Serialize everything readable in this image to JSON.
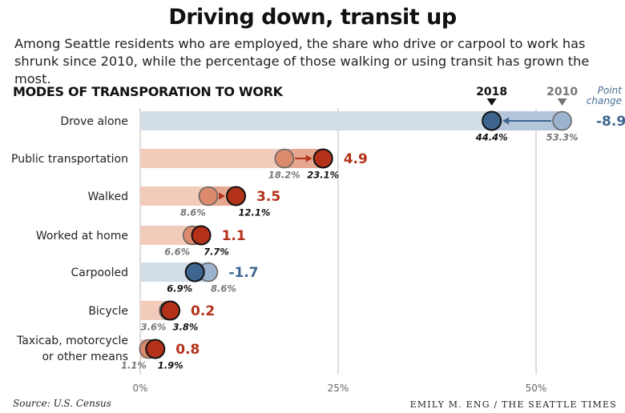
{
  "header": {
    "title": "Driving down, transit up",
    "subtitle": "Among Seattle residents who are employed, the share who drive or carpool to work has shrunk since 2010, while the percentage of those walking or using transit has grown the most.",
    "section_label": "MODES OF TRANSPORATION TO WORK"
  },
  "footer": {
    "source": "Source: U.S. Census",
    "credit": "EMILY M. ENG / THE SEATTLE TIMES"
  },
  "chart_data": {
    "type": "dumbbell",
    "title": "MODES OF TRANSPORATION TO WORK",
    "xlim": [
      0,
      60
    ],
    "ticks": [
      {
        "value": 0,
        "label": "0%"
      },
      {
        "value": 25,
        "label": "25%"
      },
      {
        "value": 50,
        "label": "50%"
      }
    ],
    "series_names": [
      "2010",
      "2018"
    ],
    "change_header": [
      "Point",
      "change"
    ],
    "colors": {
      "up_dark": "#b5321a",
      "up_light": "#db8a6c",
      "up_bar": "#f2cbbb",
      "down_dark": "#3d6590",
      "down_light": "#9cb3cd",
      "down_bar": "#d3dde8",
      "grid": "#b8b8b8",
      "label_2010": "#777777",
      "label_2018": "#111111"
    },
    "rows": [
      {
        "category": [
          "Drove alone"
        ],
        "v2010": 53.3,
        "v2018": 44.4,
        "label2010": "53.3%",
        "label2018": "44.4%",
        "change": "-8.9",
        "direction": "down"
      },
      {
        "category": [
          "Public transportation"
        ],
        "v2010": 18.2,
        "v2018": 23.1,
        "label2010": "18.2%",
        "label2018": "23.1%",
        "change": "4.9",
        "direction": "up"
      },
      {
        "category": [
          "Walked"
        ],
        "v2010": 8.6,
        "v2018": 12.1,
        "label2010": "8.6%",
        "label2018": "12.1%",
        "change": "3.5",
        "direction": "up"
      },
      {
        "category": [
          "Worked at home"
        ],
        "v2010": 6.6,
        "v2018": 7.7,
        "label2010": "6.6%",
        "label2018": "7.7%",
        "change": "1.1",
        "direction": "up"
      },
      {
        "category": [
          "Carpooled"
        ],
        "v2010": 8.6,
        "v2018": 6.9,
        "label2010": "8.6%",
        "label2018": "6.9%",
        "change": "-1.7",
        "direction": "down"
      },
      {
        "category": [
          "Bicycle"
        ],
        "v2010": 3.6,
        "v2018": 3.8,
        "label2010": "3.6%",
        "label2018": "3.8%",
        "change": "0.2",
        "direction": "up"
      },
      {
        "category": [
          "Taxicab, motorcycle",
          "or other means"
        ],
        "v2010": 1.1,
        "v2018": 1.9,
        "label2010": "1.1%",
        "label2018": "1.9%",
        "change": "0.8",
        "direction": "up"
      }
    ]
  }
}
